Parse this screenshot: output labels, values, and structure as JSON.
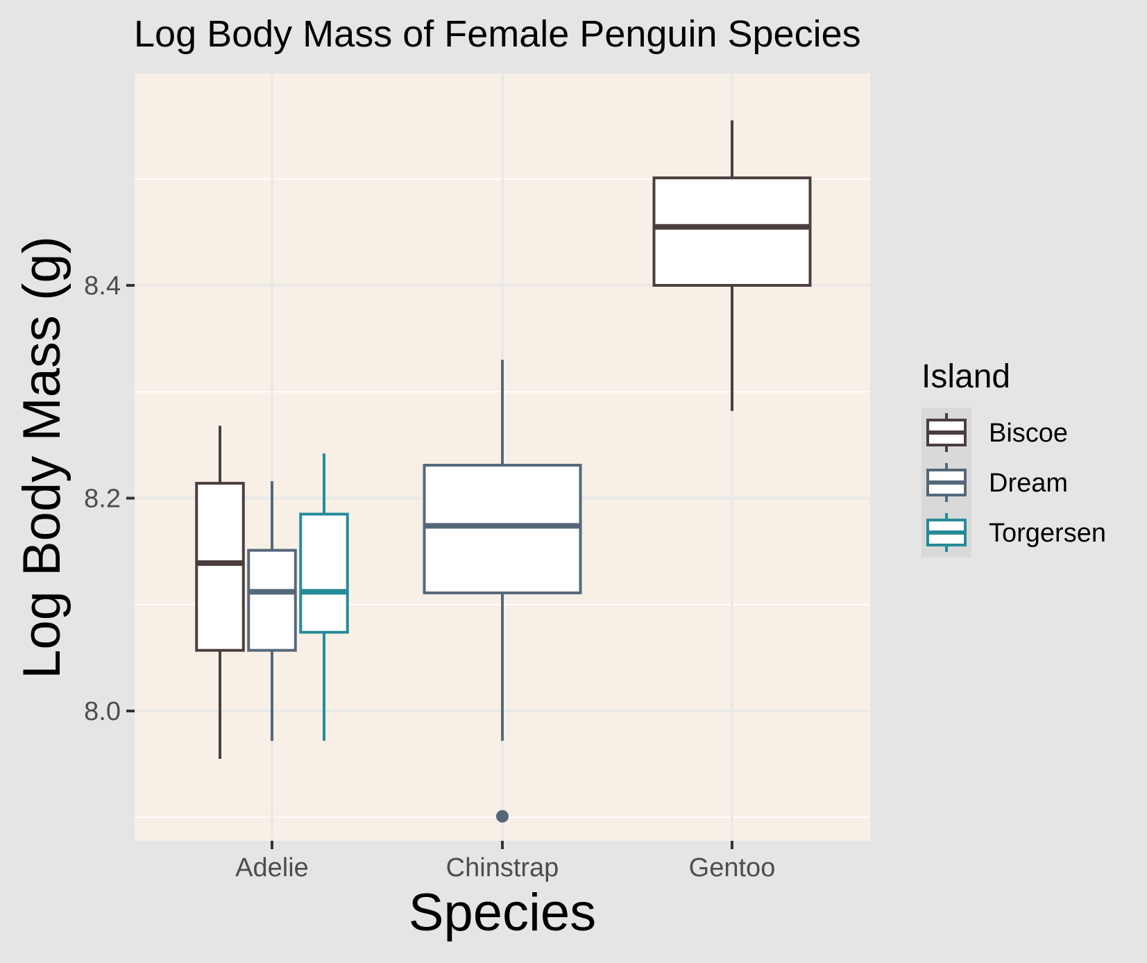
{
  "chart_data": {
    "type": "boxplot",
    "title": "Log Body Mass of Female Penguin Species",
    "xlabel": "Species",
    "ylabel": "Log Body Mass (g)",
    "ylim": [
      7.878,
      8.599
    ],
    "y_ticks": [
      8.0,
      8.2,
      8.4
    ],
    "y_tick_labels": [
      "8.0",
      "8.2",
      "8.4"
    ],
    "categories": [
      "Adelie",
      "Chinstrap",
      "Gentoo"
    ],
    "legend": {
      "title": "Island",
      "placement": "right",
      "entries": [
        "Biscoe",
        "Dream",
        "Torgersen"
      ]
    },
    "series": [
      {
        "name": "Biscoe",
        "color": "#4b3e3e",
        "boxes": [
          {
            "category": "Adelie",
            "slot": 0,
            "n_slots": 3,
            "whisker_low": 7.955,
            "q1": 8.057,
            "median": 8.139,
            "q3": 8.214,
            "whisker_high": 8.268,
            "outliers": []
          },
          {
            "category": "Gentoo",
            "slot": 0,
            "n_slots": 1,
            "whisker_low": 8.282,
            "q1": 8.4,
            "median": 8.455,
            "q3": 8.501,
            "whisker_high": 8.555,
            "outliers": []
          }
        ]
      },
      {
        "name": "Dream",
        "color": "#55687a",
        "boxes": [
          {
            "category": "Adelie",
            "slot": 1,
            "n_slots": 3,
            "whisker_low": 7.972,
            "q1": 8.057,
            "median": 8.112,
            "q3": 8.151,
            "whisker_high": 8.216,
            "outliers": []
          },
          {
            "category": "Chinstrap",
            "slot": 0,
            "n_slots": 1,
            "whisker_low": 7.972,
            "q1": 8.111,
            "median": 8.174,
            "q3": 8.231,
            "whisker_high": 8.33,
            "outliers": [
              7.901
            ]
          }
        ]
      },
      {
        "name": "Torgersen",
        "color": "#258b98",
        "boxes": [
          {
            "category": "Adelie",
            "slot": 2,
            "n_slots": 3,
            "whisker_low": 7.972,
            "q1": 8.074,
            "median": 8.112,
            "q3": 8.185,
            "whisker_high": 8.242,
            "outliers": []
          }
        ]
      }
    ],
    "colors": {
      "figure_background": "#e5e5e5",
      "panel_background": "#f8efe6",
      "grid_major": "#e9e9e9",
      "grid_minor": "#ffffff",
      "box_fill": "#ffffff",
      "legend_key_background": "#d9d9d9"
    }
  }
}
